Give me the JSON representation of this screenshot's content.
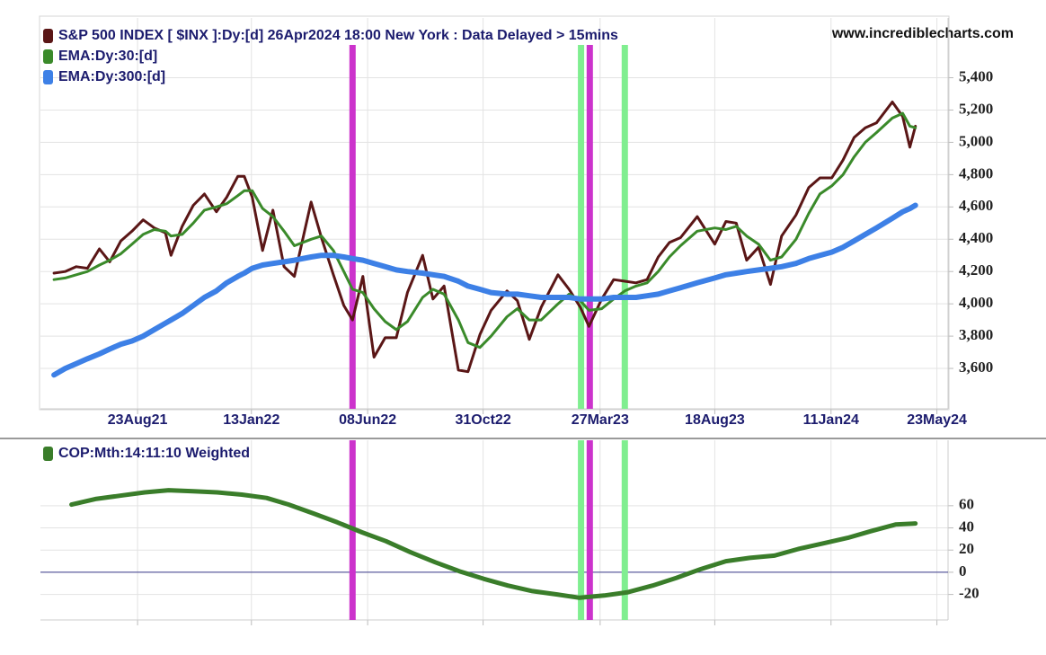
{
  "chart_data": [
    {
      "type": "line",
      "source": "www.incrediblecharts.com",
      "x": [
        "2021-05-10",
        "2021-05-24",
        "2021-06-07",
        "2021-06-21",
        "2021-07-06",
        "2021-07-19",
        "2021-08-02",
        "2021-08-16",
        "2021-08-30",
        "2021-09-13",
        "2021-09-27",
        "2021-10-04",
        "2021-10-18",
        "2021-11-01",
        "2021-11-15",
        "2021-11-30",
        "2021-12-13",
        "2021-12-27",
        "2022-01-04",
        "2022-01-14",
        "2022-01-27",
        "2022-02-09",
        "2022-02-23",
        "2022-03-08",
        "2022-03-29",
        "2022-04-11",
        "2022-04-26",
        "2022-05-09",
        "2022-05-20",
        "2022-06-02",
        "2022-06-16",
        "2022-06-30",
        "2022-07-14",
        "2022-07-28",
        "2022-08-16",
        "2022-08-29",
        "2022-09-12",
        "2022-09-30",
        "2022-10-12",
        "2022-10-27",
        "2022-11-10",
        "2022-11-30",
        "2022-12-13",
        "2022-12-28",
        "2023-01-12",
        "2023-02-02",
        "2023-02-16",
        "2023-03-02",
        "2023-03-13",
        "2023-03-29",
        "2023-04-13",
        "2023-04-27",
        "2023-05-11",
        "2023-05-25",
        "2023-06-08",
        "2023-06-22",
        "2023-07-06",
        "2023-07-27",
        "2023-08-18",
        "2023-09-01",
        "2023-09-14",
        "2023-09-27",
        "2023-10-12",
        "2023-10-27",
        "2023-11-10",
        "2023-11-28",
        "2023-12-14",
        "2023-12-28",
        "2024-01-12",
        "2024-01-26",
        "2024-02-09",
        "2024-02-23",
        "2024-03-08",
        "2024-03-28",
        "2024-04-10",
        "2024-04-19",
        "2024-04-26"
      ],
      "series": [
        {
          "name": "S&P 500 INDEX [ $INX ]:Dy:[d]  26Apr2024 18:00 New York : Data Delayed > 15mins",
          "color": "#5a1616",
          "width": 3,
          "values": [
            4190,
            4200,
            4230,
            4220,
            4340,
            4260,
            4390,
            4450,
            4520,
            4470,
            4440,
            4300,
            4480,
            4610,
            4680,
            4570,
            4660,
            4790,
            4790,
            4660,
            4330,
            4580,
            4230,
            4170,
            4630,
            4410,
            4180,
            3990,
            3900,
            4170,
            3670,
            3790,
            3790,
            4070,
            4300,
            4030,
            4110,
            3590,
            3580,
            3810,
            3960,
            4080,
            4020,
            3780,
            3980,
            4180,
            4090,
            3980,
            3860,
            4030,
            4150,
            4140,
            4130,
            4150,
            4290,
            4380,
            4410,
            4540,
            4370,
            4510,
            4500,
            4270,
            4350,
            4120,
            4420,
            4550,
            4720,
            4780,
            4780,
            4890,
            5030,
            5090,
            5120,
            5250,
            5160,
            4970,
            5100
          ]
        },
        {
          "name": "EMA:Dy:30:[d]",
          "color": "#3a8a2a",
          "width": 3,
          "values": [
            4150,
            4160,
            4180,
            4200,
            4240,
            4270,
            4310,
            4370,
            4430,
            4460,
            4450,
            4420,
            4430,
            4500,
            4580,
            4600,
            4620,
            4670,
            4700,
            4700,
            4590,
            4540,
            4450,
            4360,
            4400,
            4420,
            4330,
            4200,
            4090,
            4070,
            3970,
            3890,
            3840,
            3890,
            4040,
            4090,
            4060,
            3900,
            3760,
            3730,
            3800,
            3920,
            3970,
            3900,
            3900,
            4000,
            4060,
            4020,
            3960,
            3970,
            4030,
            4080,
            4110,
            4130,
            4200,
            4290,
            4360,
            4450,
            4470,
            4460,
            4480,
            4420,
            4370,
            4270,
            4290,
            4400,
            4560,
            4680,
            4730,
            4800,
            4910,
            5000,
            5060,
            5150,
            5180,
            5100,
            5090
          ]
        },
        {
          "name": "EMA:Dy:300:[d]",
          "color": "#3d80e6",
          "width": 6,
          "values": [
            3560,
            3600,
            3630,
            3660,
            3690,
            3720,
            3750,
            3770,
            3800,
            3840,
            3880,
            3900,
            3940,
            3990,
            4040,
            4080,
            4130,
            4170,
            4190,
            4220,
            4240,
            4250,
            4260,
            4270,
            4290,
            4300,
            4300,
            4290,
            4280,
            4270,
            4250,
            4230,
            4210,
            4200,
            4190,
            4180,
            4170,
            4140,
            4110,
            4090,
            4070,
            4060,
            4060,
            4050,
            4040,
            4040,
            4040,
            4030,
            4030,
            4030,
            4040,
            4040,
            4040,
            4050,
            4060,
            4080,
            4100,
            4130,
            4160,
            4180,
            4190,
            4200,
            4210,
            4220,
            4230,
            4250,
            4280,
            4300,
            4320,
            4350,
            4390,
            4430,
            4470,
            4530,
            4570,
            4590,
            4610
          ]
        }
      ],
      "xlim": [
        "2021-04-23",
        "2024-06-06"
      ],
      "xticks": [
        {
          "value": "2021-08-23",
          "label": "23Aug21"
        },
        {
          "value": "2022-01-13",
          "label": "13Jan22"
        },
        {
          "value": "2022-06-08",
          "label": "08Jun22"
        },
        {
          "value": "2022-10-31",
          "label": "31Oct22"
        },
        {
          "value": "2023-03-27",
          "label": "27Mar23"
        },
        {
          "value": "2023-08-18",
          "label": "18Aug23"
        },
        {
          "value": "2024-01-11",
          "label": "11Jan24"
        },
        {
          "value": "2024-05-23",
          "label": "23May24"
        }
      ],
      "ylim": [
        3350,
        5770
      ],
      "yticks": [
        {
          "value": 3600,
          "label": "3,600"
        },
        {
          "value": 3800,
          "label": "3,800"
        },
        {
          "value": 4000,
          "label": "4,000"
        },
        {
          "value": 4200,
          "label": "4,200"
        },
        {
          "value": 4400,
          "label": "4,400"
        },
        {
          "value": 4600,
          "label": "4,600"
        },
        {
          "value": 4800,
          "label": "4,800"
        },
        {
          "value": 5000,
          "label": "5,000"
        },
        {
          "value": 5200,
          "label": "5,200"
        },
        {
          "value": 5400,
          "label": "5,400"
        }
      ],
      "grid": true,
      "markers": [
        {
          "x": "2022-05-20",
          "color": "#cc33cc"
        },
        {
          "x": "2023-03-03",
          "color": "#80ee90"
        },
        {
          "x": "2023-03-14",
          "color": "#cc33cc"
        },
        {
          "x": "2023-04-27",
          "color": "#80ee90"
        }
      ]
    },
    {
      "type": "line",
      "x": [
        "2021-06-01",
        "2021-07-01",
        "2021-08-01",
        "2021-09-01",
        "2021-10-01",
        "2021-11-01",
        "2021-12-01",
        "2022-01-01",
        "2022-02-01",
        "2022-03-01",
        "2022-04-01",
        "2022-05-01",
        "2022-06-01",
        "2022-07-01",
        "2022-08-01",
        "2022-09-01",
        "2022-10-01",
        "2022-11-01",
        "2022-12-01",
        "2023-01-01",
        "2023-02-01",
        "2023-03-01",
        "2023-04-01",
        "2023-05-01",
        "2023-06-01",
        "2023-07-01",
        "2023-08-01",
        "2023-09-01",
        "2023-10-01",
        "2023-11-01",
        "2023-12-01",
        "2024-01-01",
        "2024-02-01",
        "2024-03-01",
        "2024-04-01",
        "2024-04-26"
      ],
      "series": [
        {
          "name": "COP:Mth:14:11:10 Weighted",
          "color": "#3a7d2a",
          "width": 5,
          "values": [
            61,
            66,
            69,
            72,
            74,
            73,
            72,
            70,
            67,
            61,
            53,
            45,
            36,
            28,
            18,
            9,
            1,
            -6,
            -12,
            -17,
            -20,
            -23,
            -21,
            -18,
            -12,
            -5,
            3,
            10,
            13,
            15,
            21,
            26,
            31,
            37,
            43,
            44
          ]
        }
      ],
      "ylim": [
        -43,
        119
      ],
      "yticks": [
        -20,
        0,
        20,
        40,
        60
      ],
      "grid": true
    }
  ]
}
